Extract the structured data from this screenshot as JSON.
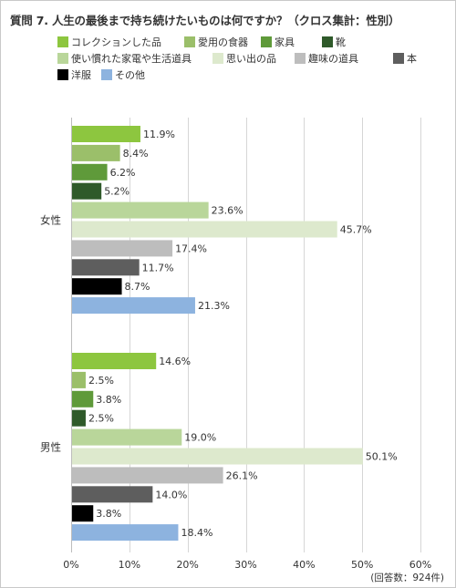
{
  "title": "質問 7. 人生の最後まで持ち続けたいものは何ですか？（クロス集計：性別）",
  "note": "(回答数：924件)",
  "chart_data": {
    "type": "bar",
    "orientation": "horizontal",
    "categories": [
      "女性",
      "男性"
    ],
    "series": [
      {
        "name": "コレクションした品",
        "color": "#8dc63f",
        "values": [
          11.9,
          14.6
        ]
      },
      {
        "name": "愛用の食器",
        "color": "#9bbf6a",
        "values": [
          8.4,
          2.5
        ]
      },
      {
        "name": "家具",
        "color": "#5f9a3a",
        "values": [
          6.2,
          3.8
        ]
      },
      {
        "name": "靴",
        "color": "#2f5a2a",
        "values": [
          5.2,
          2.5
        ]
      },
      {
        "name": "使い慣れた家電や生活道具",
        "color": "#b9d69a",
        "values": [
          23.6,
          19.0
        ]
      },
      {
        "name": "思い出の品",
        "color": "#dde9cd",
        "values": [
          45.7,
          50.1
        ]
      },
      {
        "name": "趣味の道具",
        "color": "#bdbdbd",
        "values": [
          17.4,
          26.1
        ]
      },
      {
        "name": "本",
        "color": "#5e5e5e",
        "values": [
          11.7,
          14.0
        ]
      },
      {
        "name": "洋服",
        "color": "#000000",
        "values": [
          8.7,
          3.8
        ]
      },
      {
        "name": "その他",
        "color": "#8db3df",
        "values": [
          21.3,
          18.4
        ]
      }
    ],
    "value_labels": [
      [
        "11.9%",
        "14.6%"
      ],
      [
        "8.4%",
        "2.5%"
      ],
      [
        "6.2%",
        "3.8%"
      ],
      [
        "5.2%",
        "2.5%"
      ],
      [
        "23.6%",
        "19.0%"
      ],
      [
        "45.7%",
        "50.1%"
      ],
      [
        "17.4%",
        "26.1%"
      ],
      [
        "11.7%",
        "14.0%"
      ],
      [
        "8.7%",
        "3.8%"
      ],
      [
        "21.3%",
        "18.4%"
      ]
    ],
    "xlim": [
      0,
      60
    ],
    "x_ticks": [
      0,
      10,
      20,
      30,
      40,
      50,
      60
    ],
    "x_tick_labels": [
      "0%",
      "10%",
      "20%",
      "30%",
      "40%",
      "50%",
      "60%"
    ],
    "grid": true,
    "legend_position": "top"
  }
}
